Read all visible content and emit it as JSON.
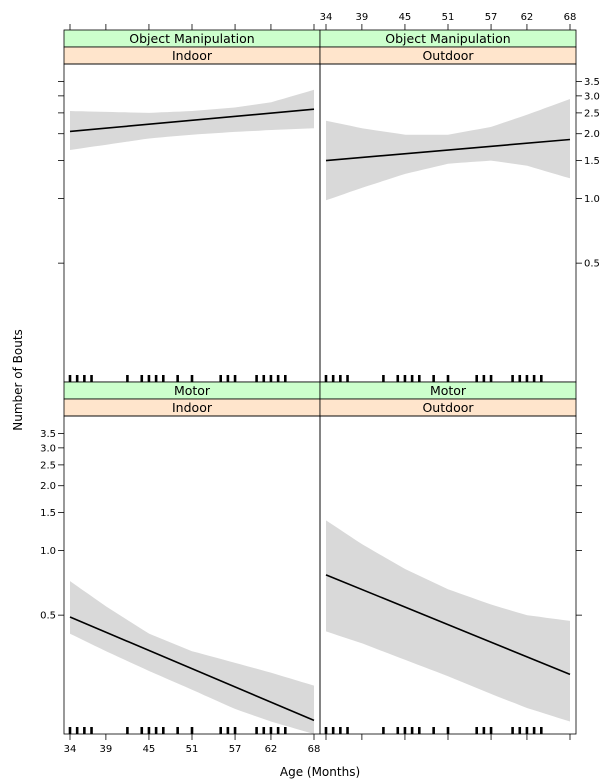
{
  "chart_data": {
    "type": "line",
    "xlabel": "Age (Months)",
    "ylabel": "Number of Bouts",
    "x_ticks": [
      34,
      39,
      45,
      51,
      57,
      62,
      68
    ],
    "xlim": [
      34,
      68
    ],
    "y_scale": "log",
    "y_ticks": [
      0.5,
      1.0,
      1.5,
      2.0,
      2.5,
      3.0,
      3.5
    ],
    "y_tick_labels": [
      "0.5",
      "1.0",
      "1.5",
      "2.0",
      "2.5",
      "3.0",
      "3.5"
    ],
    "ylim": [
      0.14,
      4.0
    ],
    "rug_ages": [
      34,
      35,
      36,
      37,
      42,
      44,
      45,
      46,
      47,
      49,
      51,
      55,
      56,
      57,
      60,
      61,
      62,
      63,
      64
    ],
    "colors": {
      "strip_top": "#ccffcc",
      "strip_bottom": "#ffe5cc",
      "band": "#d9d9d9",
      "line": "#000000"
    },
    "panels": [
      {
        "strip_top": "Object Manipulation",
        "strip_bottom": "Indoor",
        "x": [
          34,
          68
        ],
        "fit": [
          2.05,
          2.6
        ],
        "ci_x": [
          34,
          45,
          51,
          57,
          62,
          68
        ],
        "ci_lower": [
          1.68,
          1.9,
          1.98,
          2.04,
          2.08,
          2.12
        ],
        "ci_upper": [
          2.55,
          2.5,
          2.55,
          2.65,
          2.8,
          3.2
        ]
      },
      {
        "strip_top": "Object Manipulation",
        "strip_bottom": "Outdoor",
        "x": [
          34,
          68
        ],
        "fit": [
          1.5,
          1.88
        ],
        "ci_x": [
          34,
          39,
          45,
          51,
          57,
          62,
          68
        ],
        "ci_lower": [
          0.98,
          1.12,
          1.3,
          1.45,
          1.5,
          1.42,
          1.24
        ],
        "ci_upper": [
          2.3,
          2.12,
          1.98,
          1.98,
          2.15,
          2.45,
          2.9
        ]
      },
      {
        "strip_top": "Motor",
        "strip_bottom": "Indoor",
        "x": [
          34,
          68
        ],
        "fit": [
          0.49,
          0.162
        ],
        "ci_x": [
          34,
          39,
          45,
          51,
          57,
          62,
          68
        ],
        "ci_lower": [
          0.41,
          0.34,
          0.275,
          0.225,
          0.183,
          0.16,
          0.14
        ],
        "ci_upper": [
          0.72,
          0.55,
          0.41,
          0.34,
          0.3,
          0.27,
          0.235
        ]
      },
      {
        "strip_top": "Motor",
        "strip_bottom": "Outdoor",
        "x": [
          34,
          68
        ],
        "fit": [
          0.77,
          0.265
        ],
        "ci_x": [
          34,
          39,
          45,
          51,
          57,
          62,
          68
        ],
        "ci_lower": [
          0.42,
          0.37,
          0.31,
          0.26,
          0.215,
          0.185,
          0.16
        ],
        "ci_upper": [
          1.38,
          1.07,
          0.82,
          0.66,
          0.56,
          0.5,
          0.47
        ]
      }
    ]
  }
}
